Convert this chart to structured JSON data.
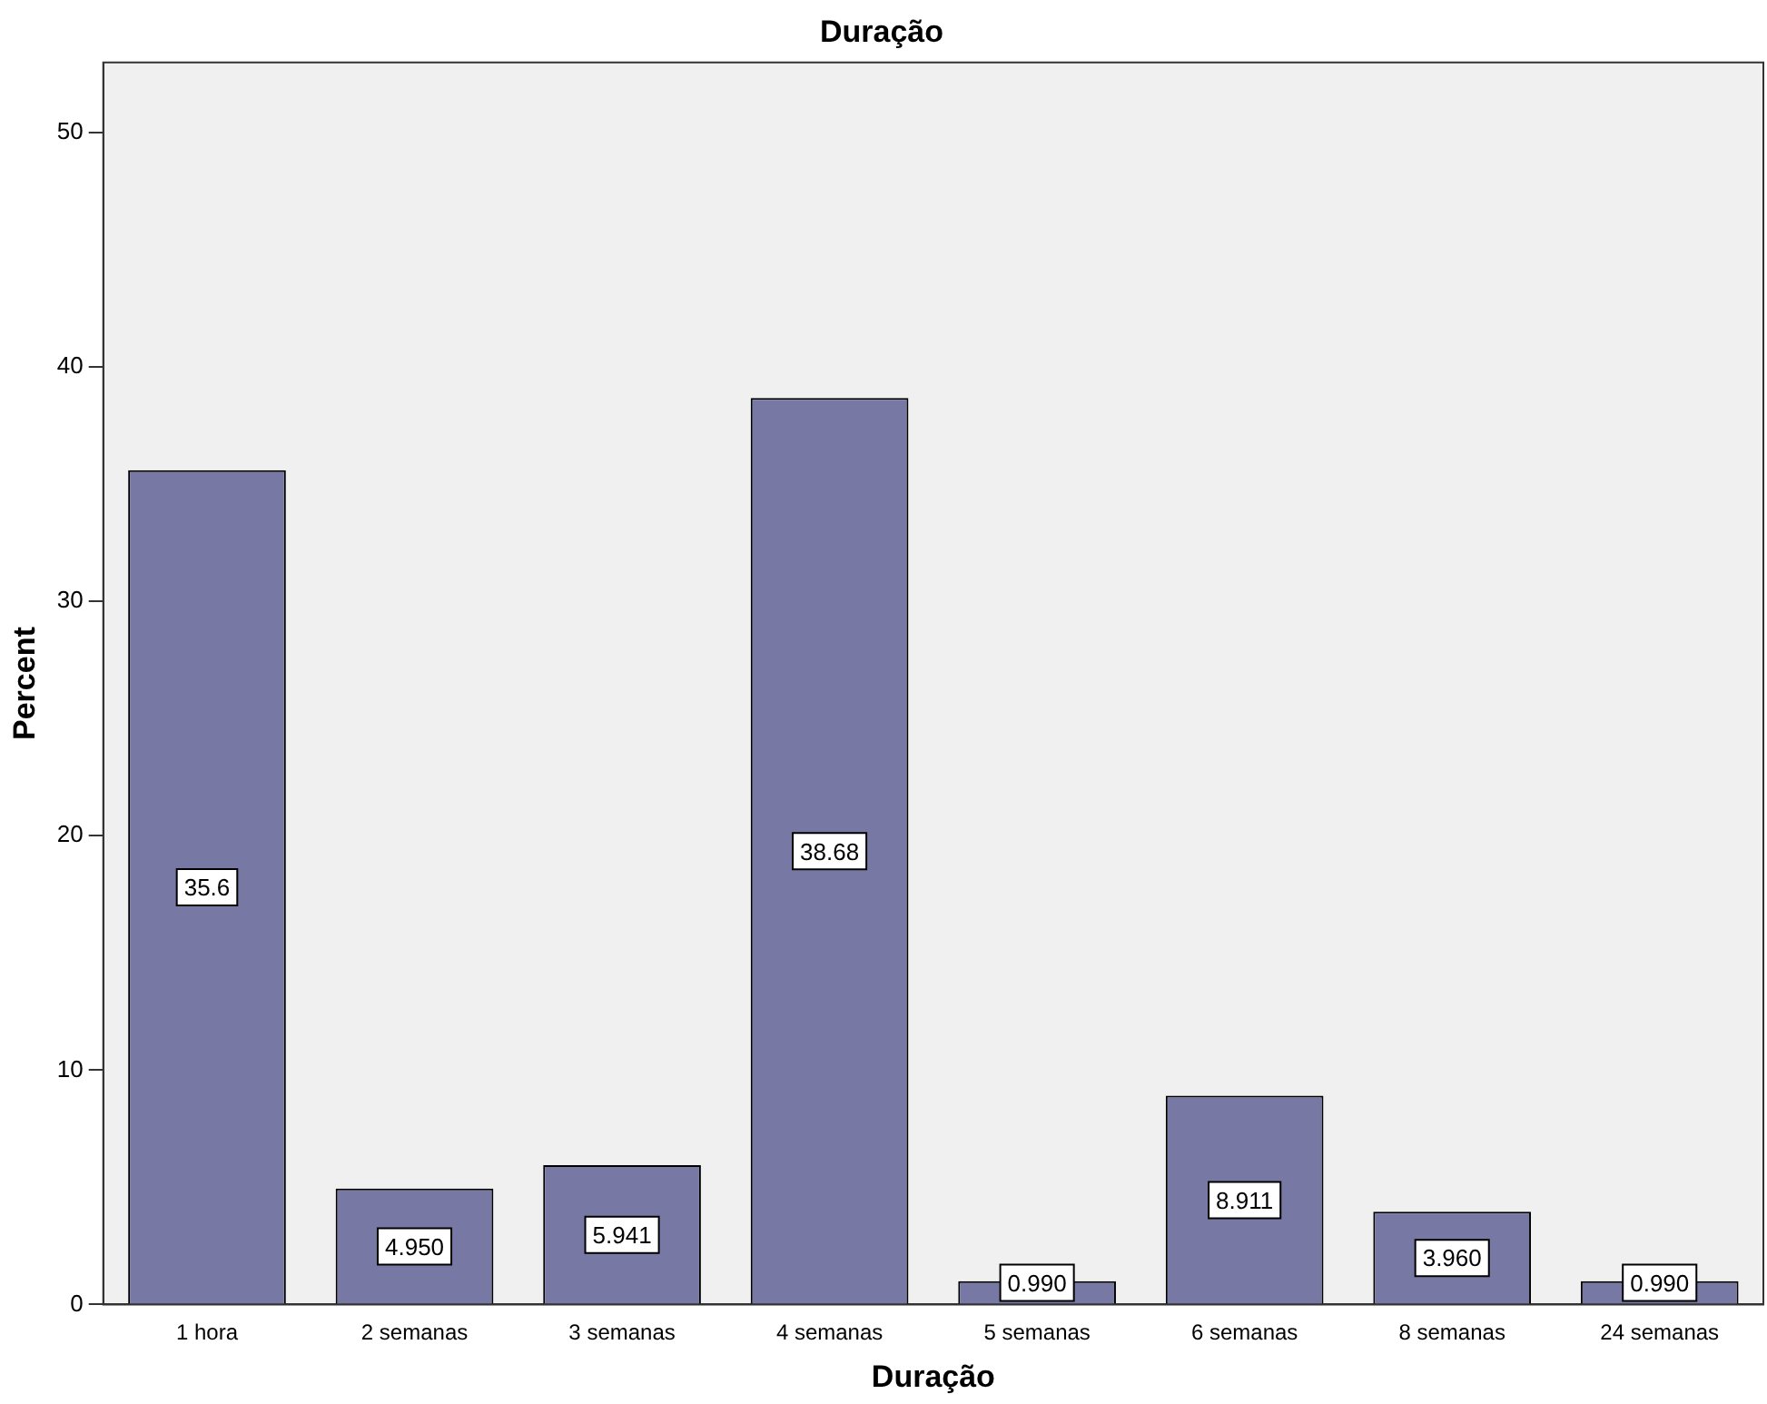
{
  "chart_data": {
    "type": "bar",
    "title": "Duração",
    "xlabel": "Duração",
    "ylabel": "Percent",
    "categories": [
      "1 hora",
      "2 semanas",
      "3 semanas",
      "4 semanas",
      "5 semanas",
      "6 semanas",
      "8 semanas",
      "24 semanas"
    ],
    "values": [
      35.6,
      4.95,
      5.941,
      38.68,
      0.99,
      8.911,
      3.96,
      0.99
    ],
    "value_labels": [
      "35.6",
      "4.950",
      "5.941",
      "38.68",
      "0.990",
      "8.911",
      "3.960",
      "0.990"
    ],
    "color": "#7878a5",
    "ylim": [
      0,
      53
    ],
    "yticks": [
      0,
      10,
      20,
      30,
      40,
      50
    ],
    "grid": false,
    "legend": false
  }
}
